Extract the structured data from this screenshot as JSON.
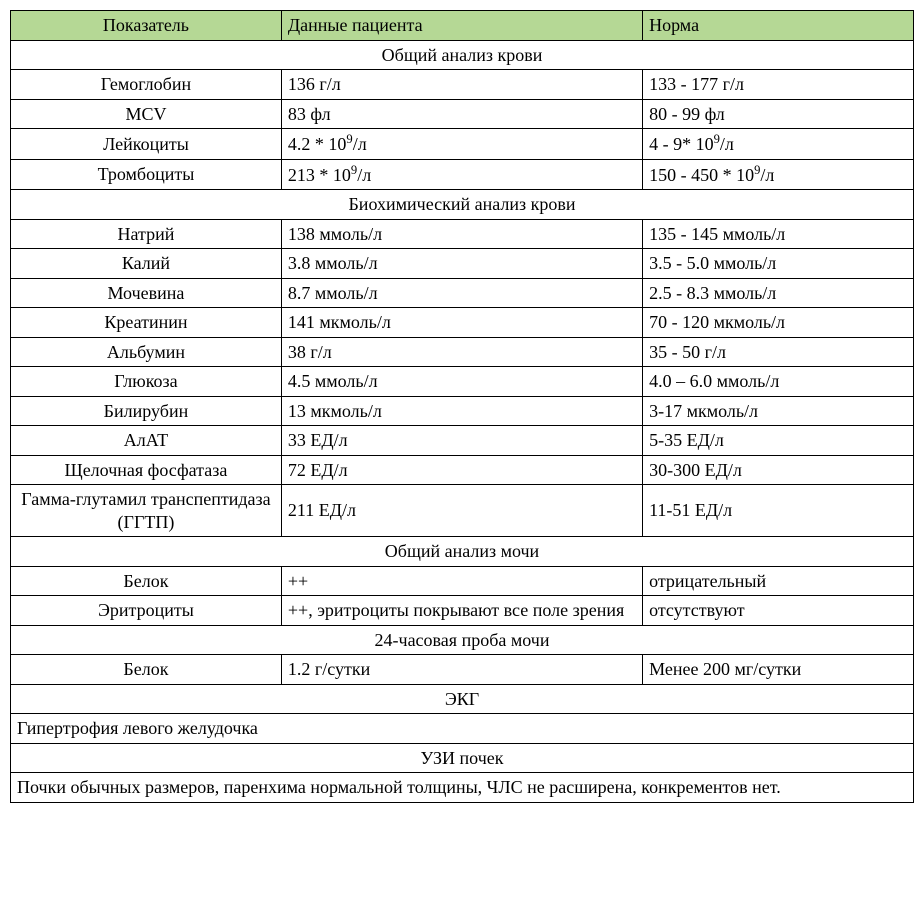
{
  "header_bg": "#b5d895",
  "headers": {
    "c1": "Показатель",
    "c2": "Данные пациента",
    "c3": "Норма"
  },
  "sections": [
    {
      "title": "Общий  анализ крови",
      "rows": [
        {
          "p": "Гемоглобин",
          "v": "136 г/л",
          "n": "133 - 177 г/л"
        },
        {
          "p": "MCV",
          "v": "83 фл",
          "n": "80 - 99 фл"
        },
        {
          "p": "Лейкоциты",
          "v_html": "4.2 * 10<sup>9</sup>/л",
          "n_html": "4 - 9* 10<sup>9</sup>/л"
        },
        {
          "p": "Тромбоциты",
          "v_html": "213 * 10<sup>9</sup>/л",
          "n_html": "150 - 450 * 10<sup>9</sup>/л"
        }
      ]
    },
    {
      "title": "Биохимический анализ крови",
      "rows": [
        {
          "p": "Натрий",
          "v": "138 ммоль/л",
          "n": "135 - 145 ммоль/л"
        },
        {
          "p": "Калий",
          "v": "3.8 ммоль/л",
          "n": "3.5 - 5.0 ммоль/л"
        },
        {
          "p": "Мочевина",
          "v": "8.7 ммоль/л",
          "n": "2.5 - 8.3 ммоль/л"
        },
        {
          "p": "Креатинин",
          "v": "141 мкмоль/л",
          "n": "70 - 120 мкмоль/л"
        },
        {
          "p": "Альбумин",
          "v": "38 г/л",
          "n": "35 - 50 г/л"
        },
        {
          "p": "Глюкоза",
          "v": "4.5 ммоль/л",
          "n": "4.0 – 6.0 ммоль/л"
        },
        {
          "p": "Билирубин",
          "v": "13 мкмоль/л",
          "n": "3-17 мкмоль/л"
        },
        {
          "p": "АлАТ",
          "v": "33 ЕД/л",
          "n": "5-35 ЕД/л"
        },
        {
          "p": "Щелочная фосфатаза",
          "v": "72 ЕД/л",
          "n": "30-300 ЕД/л"
        },
        {
          "p": "Гамма-глутамил транспептидаза (ГГТП)",
          "v": "211 ЕД/л",
          "n": "11-51 ЕД/л"
        }
      ]
    },
    {
      "title": "Общий анализ мочи",
      "rows": [
        {
          "p": "Белок",
          "v": "++",
          "n": "отрицательный"
        },
        {
          "p": "Эритроциты",
          "v": "++, эритроциты покрывают все поле зрения",
          "n": "отсутствуют"
        }
      ]
    },
    {
      "title": "24-часовая проба мочи",
      "rows": [
        {
          "p": "Белок",
          "v": "1.2 г/сутки",
          "n": "Менее 200 мг/сутки"
        }
      ]
    },
    {
      "title": "ЭКГ",
      "note": "Гипертрофия левого желудочка"
    },
    {
      "title": "УЗИ почек",
      "note": "Почки обычных размеров, паренхима нормальной толщины, ЧЛС не расширена, конкрементов нет.",
      "justify": true
    }
  ]
}
